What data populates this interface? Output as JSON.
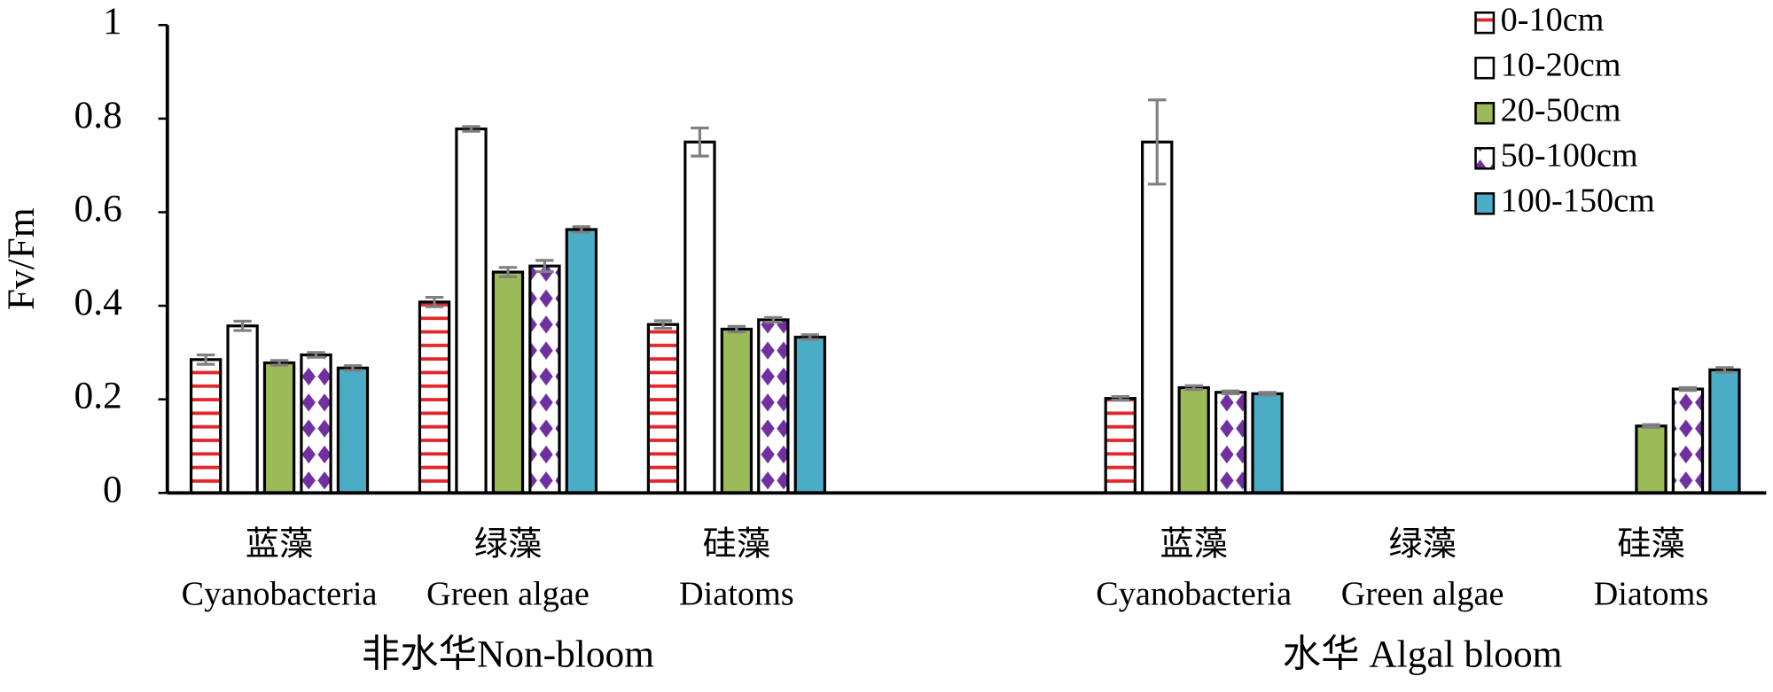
{
  "chart_data": {
    "type": "bar",
    "y_label": "Fv/Fm",
    "categories": [
      [
        "蓝藻",
        "Cyanobacteria"
      ],
      [
        "绿藻",
        "Green algae"
      ],
      [
        "硅藻",
        "Diatoms"
      ],
      null,
      [
        "蓝藻",
        "Cyanobacteria"
      ],
      [
        "绿藻",
        "Green algae"
      ],
      [
        "硅藻",
        "Diatoms"
      ]
    ],
    "groups": [
      "非水华Non-bloom",
      "水华 Algal bloom"
    ],
    "series": [
      {
        "name": "0-10cm",
        "color": "#e3262b",
        "pattern": "stripes",
        "values": [
          0.285,
          0.408,
          0.36,
          null,
          0.202,
          null,
          null
        ],
        "errors": [
          0.01,
          0.01,
          0.008,
          null,
          0.004,
          null,
          null
        ]
      },
      {
        "name": "10-20cm",
        "color": "#ffffff",
        "pattern": null,
        "values": [
          0.357,
          0.778,
          0.75,
          null,
          0.75,
          null,
          null
        ],
        "errors": [
          0.01,
          0.005,
          0.03,
          null,
          0.09,
          null,
          null
        ]
      },
      {
        "name": "20-50cm",
        "color": "#9bbb59",
        "pattern": null,
        "values": [
          0.278,
          0.472,
          0.35,
          null,
          0.225,
          null,
          0.143
        ],
        "errors": [
          0.005,
          0.01,
          0.006,
          null,
          0.004,
          null,
          0.003
        ]
      },
      {
        "name": "50-100cm",
        "color": "#7030a0",
        "pattern": "diamonds",
        "values": [
          0.295,
          0.485,
          0.37,
          null,
          0.215,
          null,
          0.222
        ],
        "errors": [
          0.005,
          0.012,
          0.005,
          null,
          0.003,
          null,
          0.003
        ]
      },
      {
        "name": "100-150cm",
        "color": "#4bacc6",
        "pattern": null,
        "values": [
          0.267,
          0.563,
          0.333,
          null,
          0.212,
          null,
          0.263
        ],
        "errors": [
          0.005,
          0.006,
          0.005,
          null,
          0.003,
          null,
          0.005
        ]
      }
    ],
    "error_color": "#808080",
    "ylim": [
      0,
      1
    ],
    "yticks": [
      0,
      0.2,
      0.4,
      0.6,
      0.8,
      1
    ],
    "grid": false,
    "legend": "top-right"
  }
}
